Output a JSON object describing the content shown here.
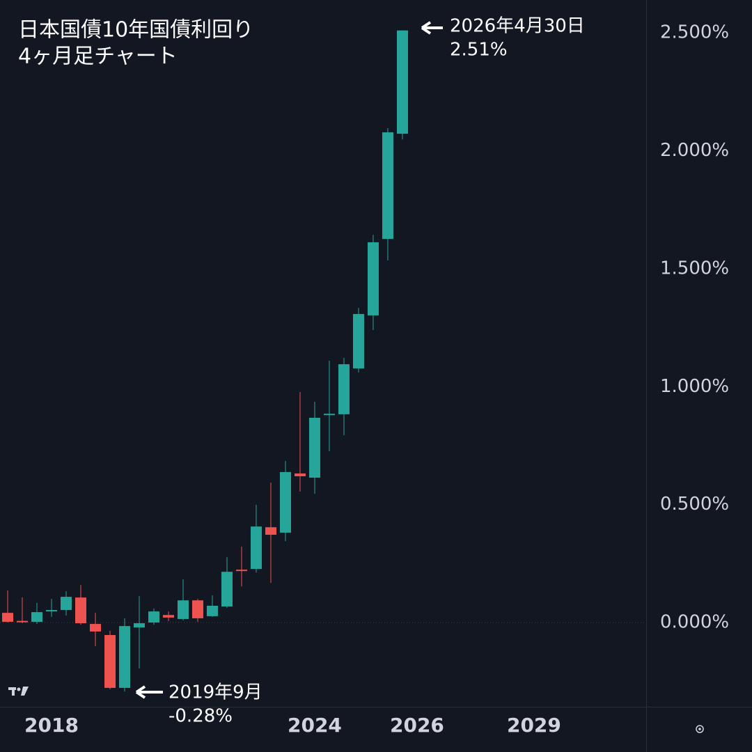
{
  "chart_data": {
    "type": "candlestick",
    "title": [
      "日本国債10年国債利回り",
      "4ヶ月足チャート"
    ],
    "up_color": "#26a69a",
    "down_color": "#ef5350",
    "open": [
      0.041,
      0.007,
      0.003,
      0.047,
      0.053,
      0.106,
      -0.006,
      -0.053,
      -0.277,
      -0.021,
      0.0,
      0.032,
      0.015,
      0.094,
      0.027,
      0.068,
      0.224,
      0.227,
      0.404,
      0.381,
      0.632,
      0.614,
      0.88,
      0.883,
      1.077,
      1.302,
      1.626,
      2.072
    ],
    "high": [
      0.136,
      0.106,
      0.083,
      0.1,
      0.133,
      0.159,
      0.041,
      -0.035,
      0.018,
      0.112,
      0.059,
      0.047,
      0.183,
      0.1,
      0.115,
      0.277,
      0.322,
      0.499,
      0.593,
      0.685,
      0.977,
      0.936,
      1.11,
      1.122,
      1.334,
      1.644,
      2.096,
      2.51
    ],
    "low": [
      0.0,
      -0.003,
      -0.006,
      0.024,
      0.03,
      -0.009,
      -0.1,
      -0.283,
      -0.292,
      -0.195,
      -0.009,
      0.006,
      0.009,
      0.003,
      0.024,
      0.062,
      0.153,
      0.212,
      0.168,
      0.345,
      0.555,
      0.546,
      0.726,
      0.794,
      1.06,
      1.24,
      1.535,
      2.048
    ],
    "close": [
      0.003,
      0.004,
      0.044,
      0.053,
      0.109,
      -0.003,
      -0.038,
      -0.277,
      -0.015,
      -0.003,
      0.047,
      0.021,
      0.094,
      0.018,
      0.071,
      0.215,
      0.221,
      0.407,
      0.372,
      0.638,
      0.62,
      0.868,
      0.885,
      1.095,
      1.308,
      1.612,
      2.078,
      2.51
    ],
    "xlim": [
      -0.524,
      43.67
    ],
    "xticks": [
      {
        "value": 3,
        "label": "2018"
      },
      {
        "value": 21,
        "label": "2024"
      },
      {
        "value": 28,
        "label": "2026"
      },
      {
        "value": 36,
        "label": "2029"
      }
    ],
    "ylim": [
      -0.357,
      2.639
    ],
    "yticks": [
      {
        "value": 0,
        "label": "0.000%"
      },
      {
        "value": 0.5,
        "label": "0.500%"
      },
      {
        "value": 1,
        "label": "1.000%"
      },
      {
        "value": 1.5,
        "label": "1.500%"
      },
      {
        "value": 2,
        "label": "2.000%"
      },
      {
        "value": 2.5,
        "label": "2.500%"
      }
    ],
    "annotations": [
      {
        "date": "2026年4月30日",
        "value": "2.51%"
      },
      {
        "date": "2019年9月",
        "value": "-0.28%"
      }
    ]
  }
}
